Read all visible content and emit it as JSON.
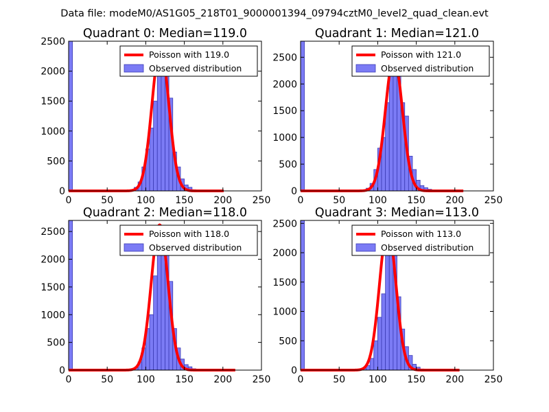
{
  "figure": {
    "suptitle": "Data file: modeM0/AS1G05_218T01_9000001394_09794cztM0_level2_quad_clean.evt"
  },
  "colors": {
    "bar_fill": "#7b7bf5",
    "bar_edge": "#3b3bb5",
    "poisson_line": "#ff0000",
    "legend_border": "#000000"
  },
  "chart_data": [
    {
      "type": "bar",
      "title": "Quadrant 0: Median=119.0",
      "xlim": [
        0,
        250
      ],
      "ylim": [
        0,
        2500
      ],
      "xticks": [
        0,
        50,
        100,
        150,
        200,
        250
      ],
      "yticks": [
        0,
        500,
        1000,
        1500,
        2000,
        2500
      ],
      "bin_width": 5,
      "bins_x": [
        0,
        80,
        85,
        90,
        95,
        100,
        105,
        110,
        115,
        120,
        125,
        130,
        135,
        140,
        145,
        150,
        155,
        160,
        165
      ],
      "bins_y": [
        2500,
        20,
        60,
        150,
        400,
        700,
        1050,
        1500,
        2000,
        2300,
        2050,
        1550,
        650,
        400,
        200,
        100,
        60,
        20,
        10
      ],
      "poisson_mean": 119.0,
      "poisson_x_range": [
        0,
        201
      ],
      "poisson_peak": 2400,
      "legend": [
        "Poisson with 119.0",
        "Observed distribution"
      ]
    },
    {
      "type": "bar",
      "title": "Quadrant 1: Median=121.0",
      "xlim": [
        0,
        250
      ],
      "ylim": [
        0,
        2800
      ],
      "xticks": [
        0,
        50,
        100,
        150,
        200,
        250
      ],
      "yticks": [
        0,
        500,
        1000,
        1500,
        2000,
        2500
      ],
      "bin_width": 5,
      "bins_x": [
        0,
        80,
        85,
        90,
        95,
        100,
        105,
        110,
        115,
        120,
        125,
        130,
        135,
        140,
        145,
        150,
        155,
        160,
        165,
        170
      ],
      "bins_y": [
        2800,
        20,
        50,
        140,
        400,
        800,
        1000,
        1650,
        2200,
        2550,
        2250,
        1650,
        1400,
        650,
        400,
        200,
        100,
        60,
        30,
        10
      ],
      "poisson_mean": 121.0,
      "poisson_x_range": [
        0,
        211
      ],
      "poisson_peak": 2500,
      "legend": [
        "Poisson with 121.0",
        "Observed distribution"
      ]
    },
    {
      "type": "bar",
      "title": "Quadrant 2: Median=118.0",
      "xlim": [
        0,
        250
      ],
      "ylim": [
        0,
        2700
      ],
      "xticks": [
        0,
        50,
        100,
        150,
        200,
        250
      ],
      "yticks": [
        0,
        500,
        1000,
        1500,
        2000,
        2500
      ],
      "bin_width": 5,
      "bins_x": [
        0,
        80,
        85,
        90,
        95,
        100,
        105,
        110,
        115,
        120,
        125,
        130,
        135,
        140,
        145,
        150,
        155,
        160,
        165,
        170
      ],
      "bins_y": [
        2700,
        20,
        50,
        150,
        400,
        750,
        1000,
        1700,
        2150,
        2550,
        2100,
        1600,
        750,
        400,
        200,
        100,
        60,
        25,
        10,
        5
      ],
      "poisson_mean": 118.0,
      "poisson_x_range": [
        0,
        216
      ],
      "poisson_peak": 2620,
      "legend": [
        "Poisson with 118.0",
        "Observed distribution"
      ]
    },
    {
      "type": "bar",
      "title": "Quadrant 3: Median=113.0",
      "xlim": [
        0,
        250
      ],
      "ylim": [
        0,
        2550
      ],
      "xticks": [
        0,
        50,
        100,
        150,
        200,
        250
      ],
      "yticks": [
        0,
        500,
        1000,
        1500,
        2000,
        2500
      ],
      "bin_width": 5,
      "bins_x": [
        0,
        70,
        75,
        80,
        85,
        90,
        95,
        100,
        105,
        110,
        115,
        120,
        125,
        130,
        135,
        140,
        145,
        150,
        155,
        160
      ],
      "bins_y": [
        2550,
        10,
        20,
        40,
        80,
        200,
        500,
        900,
        1300,
        2050,
        2350,
        1950,
        1250,
        700,
        400,
        250,
        100,
        50,
        20,
        10
      ],
      "poisson_mean": 113.0,
      "poisson_x_range": [
        0,
        206
      ],
      "poisson_peak": 2430,
      "legend": [
        "Poisson with 113.0",
        "Observed distribution"
      ]
    }
  ]
}
